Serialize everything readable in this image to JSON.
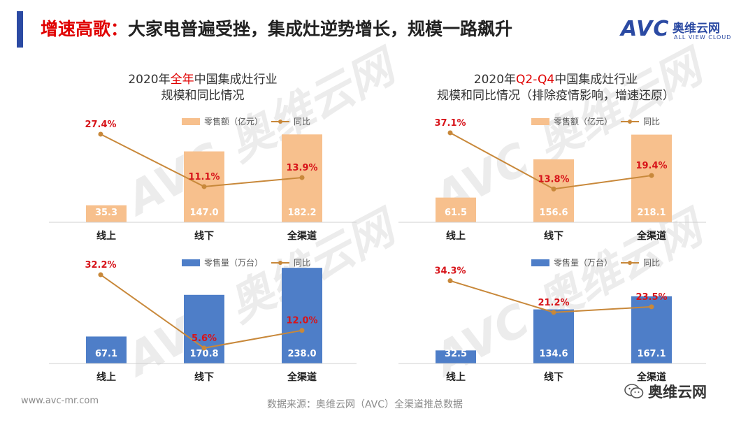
{
  "header": {
    "title_highlight": "增速高歌：",
    "title_rest": "大家电普遍受挫，集成灶逆势增长，规模一路飙升"
  },
  "logo": {
    "brand": "AVC",
    "cn": "奥维云网",
    "en": "ALL VIEW CLOUD"
  },
  "colors": {
    "bar_orange": "#f7c08d",
    "bar_blue": "#4e7ec8",
    "line": "#c8883a",
    "label_red": "#d7141a"
  },
  "charts": {
    "c1": {
      "title_pre": "2020年",
      "title_red": "全年",
      "title_post": "中国集成灶行业",
      "title_line2": "规模和同比情况"
    },
    "c2": {
      "title_pre": "2020年",
      "title_red": "Q2-Q4",
      "title_post": "中国集成灶行业",
      "title_line2": "规模和同比情况（排除疫情影响，增速还原）"
    }
  },
  "chart_data": [
    {
      "id": "full-year-sales",
      "type": "bar",
      "title": "2020年全年中国集成灶行业规模和同比情况",
      "categories": [
        "线上",
        "线下",
        "全渠道"
      ],
      "series": [
        {
          "name": "零售额（亿元）",
          "kind": "bar",
          "values": [
            35.3,
            147.0,
            182.2
          ],
          "labels": [
            "35.3",
            "147.0",
            "182.2"
          ]
        },
        {
          "name": "同比",
          "kind": "line",
          "values": [
            27.4,
            11.1,
            13.9
          ],
          "labels": [
            "27.4%",
            "11.1%",
            "13.9%"
          ]
        }
      ],
      "ylim_bar": [
        0,
        200
      ],
      "ylim_line": [
        0,
        30
      ]
    },
    {
      "id": "q2q4-sales",
      "type": "bar",
      "title": "2020年Q2-Q4中国集成灶行业规模和同比情况（排除疫情影响，增速还原）",
      "categories": [
        "线上",
        "线下",
        "全渠道"
      ],
      "series": [
        {
          "name": "零售额（亿元）",
          "kind": "bar",
          "values": [
            61.5,
            156.6,
            218.1
          ],
          "labels": [
            "61.5",
            "156.6",
            "218.1"
          ]
        },
        {
          "name": "同比",
          "kind": "line",
          "values": [
            37.1,
            13.8,
            19.4
          ],
          "labels": [
            "37.1%",
            "13.8%",
            "19.4%"
          ]
        }
      ],
      "ylim_bar": [
        0,
        240
      ],
      "ylim_line": [
        0,
        40
      ]
    },
    {
      "id": "full-year-volume",
      "type": "bar",
      "categories": [
        "线上",
        "线下",
        "全渠道"
      ],
      "series": [
        {
          "name": "零售量（万台）",
          "kind": "bar",
          "values": [
            67.1,
            170.8,
            238.0
          ],
          "labels": [
            "67.1",
            "170.8",
            "238.0"
          ]
        },
        {
          "name": "同比",
          "kind": "line",
          "values": [
            32.2,
            5.6,
            12.0
          ],
          "labels": [
            "32.2%",
            "5.6%",
            "12.0%"
          ]
        }
      ],
      "ylim_bar": [
        0,
        240
      ],
      "ylim_line": [
        0,
        35
      ]
    },
    {
      "id": "q2q4-volume",
      "type": "bar",
      "categories": [
        "线上",
        "线下",
        "全渠道"
      ],
      "series": [
        {
          "name": "零售量（万台）",
          "kind": "bar",
          "values": [
            32.5,
            134.6,
            167.1
          ],
          "labels": [
            "32.5",
            "134.6",
            "167.1"
          ]
        },
        {
          "name": "同比",
          "kind": "line",
          "values": [
            34.3,
            21.2,
            23.5
          ],
          "labels": [
            "34.3%",
            "21.2%",
            "23.5%"
          ]
        }
      ],
      "ylim_bar": [
        0,
        240
      ],
      "ylim_line": [
        0,
        40
      ]
    }
  ],
  "footer": {
    "url": "www.avc-mr.com",
    "source": "数据来源：奥维云网（AVC）全渠道推总数据",
    "wechat": "奥维云网"
  }
}
